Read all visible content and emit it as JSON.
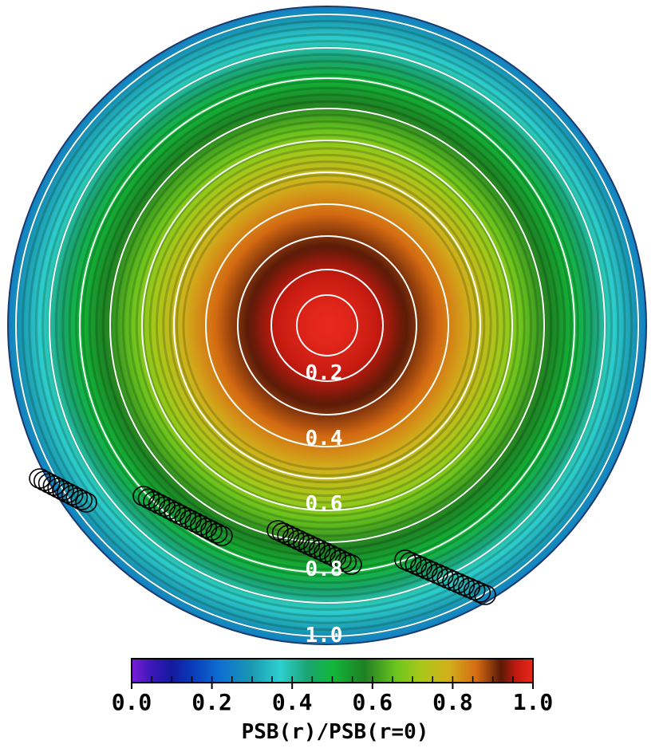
{
  "chart_data": {
    "type": "heatmap",
    "title": "",
    "colorbar": {
      "label": "PSB(r)/PSB(r=0)",
      "ticks": [
        "0.0",
        "0.2",
        "0.4",
        "0.6",
        "0.8",
        "1.0"
      ],
      "range": [
        0.0,
        1.0
      ],
      "colormap": [
        {
          "v": 0.0,
          "c": "#7a1fd6"
        },
        {
          "v": 0.05,
          "c": "#3a17b8"
        },
        {
          "v": 0.1,
          "c": "#141a9e"
        },
        {
          "v": 0.15,
          "c": "#0a3ab8"
        },
        {
          "v": 0.22,
          "c": "#0d6fd0"
        },
        {
          "v": 0.3,
          "c": "#1a9ab2"
        },
        {
          "v": 0.37,
          "c": "#2ecfcf"
        },
        {
          "v": 0.44,
          "c": "#1aa370"
        },
        {
          "v": 0.5,
          "c": "#12b83a"
        },
        {
          "v": 0.58,
          "c": "#1e7f22"
        },
        {
          "v": 0.66,
          "c": "#6cc61e"
        },
        {
          "v": 0.72,
          "c": "#a8c81a"
        },
        {
          "v": 0.79,
          "c": "#d2b01c"
        },
        {
          "v": 0.86,
          "c": "#d46a12"
        },
        {
          "v": 0.92,
          "c": "#5a1a08"
        },
        {
          "v": 0.96,
          "c": "#c41a10"
        },
        {
          "v": 1.0,
          "c": "#e8281c"
        }
      ]
    },
    "contour_labels": [
      {
        "level": 0.2,
        "text": "0.2"
      },
      {
        "level": 0.4,
        "text": "0.4"
      },
      {
        "level": 0.6,
        "text": "0.6"
      },
      {
        "level": 0.8,
        "text": "0.8"
      },
      {
        "level": 1.0,
        "text": "1.0"
      }
    ],
    "contour_levels": [
      0.1,
      0.2,
      0.3,
      0.4,
      0.5,
      0.6,
      0.7,
      0.8,
      0.9,
      1.0
    ],
    "marker_groups": 4,
    "markers_per_group": [
      11,
      16,
      15,
      16
    ]
  }
}
